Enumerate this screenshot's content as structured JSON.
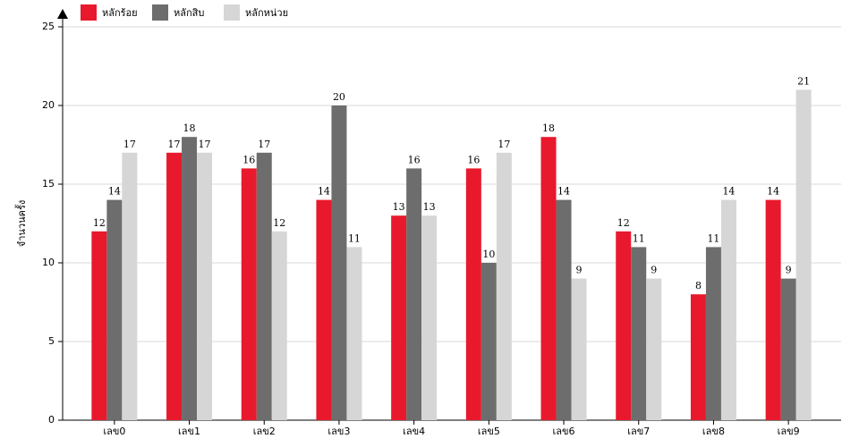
{
  "chart_data": {
    "type": "bar",
    "y_label": "จำนวนครั้ง",
    "categories": [
      "เลข0",
      "เลข1",
      "เลข2",
      "เลข3",
      "เลข4",
      "เลข5",
      "เลข6",
      "เลข7",
      "เลข8",
      "เลข9"
    ],
    "series": [
      {
        "name": "หลักร้อย",
        "color": "#e8192c",
        "values": [
          12,
          17,
          16,
          14,
          13,
          16,
          18,
          12,
          8,
          14
        ]
      },
      {
        "name": "หลักสิบ",
        "color": "#6d6d6d",
        "values": [
          14,
          18,
          17,
          20,
          16,
          10,
          14,
          11,
          11,
          9
        ]
      },
      {
        "name": "หลักหน่วย",
        "color": "#d6d6d6",
        "values": [
          17,
          17,
          12,
          11,
          13,
          17,
          9,
          9,
          14,
          21
        ]
      }
    ],
    "ylim": [
      0,
      25
    ],
    "yticks": [
      0,
      5,
      10,
      15,
      20,
      25
    ],
    "grid": true,
    "legend": "top-left"
  }
}
